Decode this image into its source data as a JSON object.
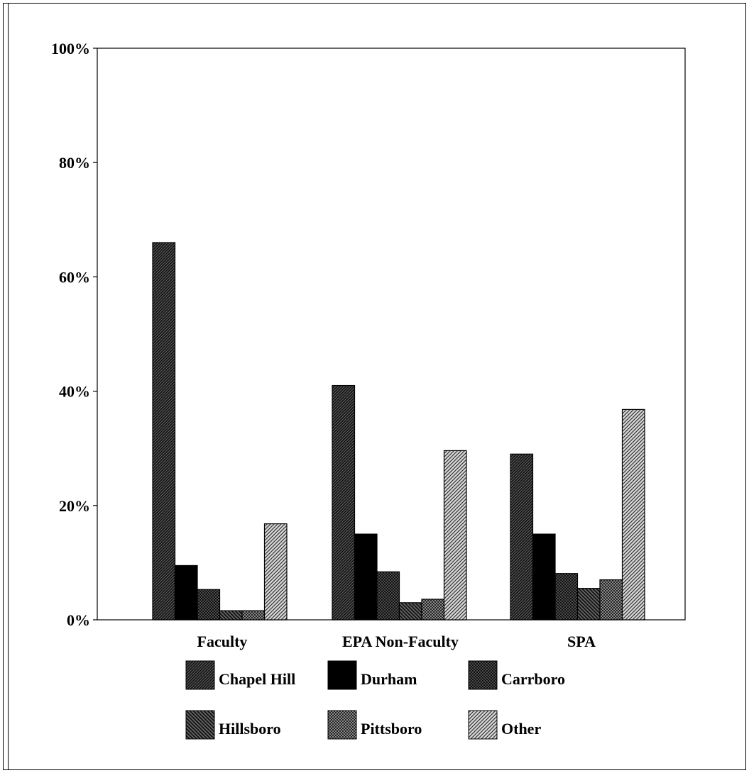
{
  "chart_data": {
    "type": "bar",
    "title": "",
    "xlabel": "",
    "ylabel": "",
    "categories": [
      "Faculty",
      "EPA Non-Faculty",
      "SPA"
    ],
    "ylim": [
      0,
      100
    ],
    "yticks": [
      0,
      20,
      40,
      60,
      80,
      100
    ],
    "ytick_labels": [
      "0%",
      "20%",
      "40%",
      "60%",
      "80%",
      "100%"
    ],
    "grid": false,
    "legend_position": "bottom",
    "series": [
      {
        "name": "Chapel Hill",
        "values": [
          66,
          41,
          29
        ],
        "pattern": "dense-diagonal",
        "color": "#3a3a3a"
      },
      {
        "name": "Durham",
        "values": [
          9.5,
          15,
          15
        ],
        "pattern": "solid",
        "color": "#000000"
      },
      {
        "name": "Carrboro",
        "values": [
          5.3,
          8.4,
          8.1
        ],
        "pattern": "crosshatch",
        "color": "#4a4a4a"
      },
      {
        "name": "Hillsboro",
        "values": [
          1.6,
          3.0,
          5.5
        ],
        "pattern": "diagonal-dark",
        "color": "#2e2e2e"
      },
      {
        "name": "Pittsboro",
        "values": [
          1.6,
          3.6,
          7.0
        ],
        "pattern": "dotted",
        "color": "#6a6a6a"
      },
      {
        "name": "Other",
        "values": [
          16.8,
          29.6,
          36.8
        ],
        "pattern": "light-diagonal",
        "color": "#9a9a9a"
      }
    ]
  }
}
